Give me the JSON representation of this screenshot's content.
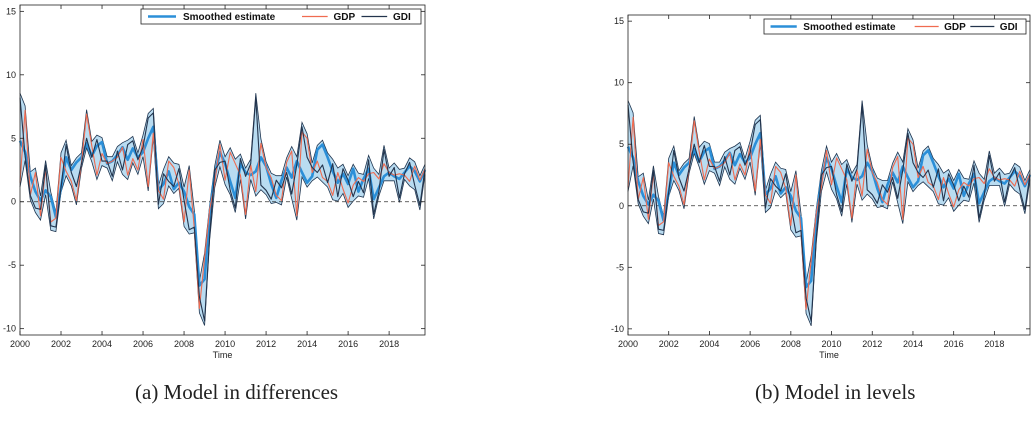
{
  "chart_data": [
    {
      "type": "line",
      "caption": "(a) Model in differences",
      "xlabel": "Time",
      "ylabel": "",
      "xlim": [
        2000,
        2019.75
      ],
      "ylim": [
        -10.5,
        15.5
      ],
      "xticks": [
        "2000",
        "2002",
        "2004",
        "2006",
        "2008",
        "2010",
        "2012",
        "2014",
        "2016",
        "2018"
      ],
      "yticks": [
        "-10",
        "-5",
        "0",
        "5",
        "10",
        "15"
      ],
      "grid": false,
      "legend_position": "top-right",
      "zero_line": true,
      "x_start": 2000,
      "x_step": 0.25,
      "series": [
        {
          "name": "Smoothed estimate",
          "color": "#2b8fd8",
          "values": [
            4.8,
            3.9,
            2.0,
            0.8,
            0.1,
            0.9,
            0.4,
            -1.2,
            1.1,
            3.5,
            2.5,
            3.1,
            3.5,
            4.6,
            3.6,
            4.4,
            4.7,
            3.0,
            3.2,
            3.7,
            4.3,
            3.3,
            4.2,
            3.5,
            3.9,
            5.0,
            5.9,
            0.9,
            1.4,
            2.4,
            1.0,
            1.5,
            0.8,
            -0.4,
            -1.0,
            -6.6,
            -6.1,
            -0.9,
            2.1,
            3.9,
            3.0,
            1.6,
            0.3,
            3.0,
            2.3,
            2.1,
            2.4,
            3.5,
            2.8,
            1.4,
            0.3,
            1.7,
            2.7,
            1.9,
            3.2,
            2.3,
            1.5,
            2.0,
            4.1,
            4.5,
            3.5,
            2.4,
            1.5,
            2.2,
            1.4,
            2.6,
            0.8,
            1.8,
            2.6,
            0.2,
            1.1,
            2.0,
            2.3,
            2.0,
            1.8,
            2.3,
            2.8,
            2.4,
            1.6,
            2.5
          ]
        },
        {
          "name": "GDP",
          "color": "#f06b50",
          "values": [
            1.5,
            7.2,
            0.5,
            2.3,
            -1.1,
            2.6,
            -1.6,
            -1.3,
            3.5,
            2.4,
            1.6,
            0.1,
            3.1,
            6.9,
            4.4,
            2.1,
            3.8,
            3.0,
            3.2,
            3.5,
            4.3,
            2.1,
            3.4,
            2.5,
            4.9,
            1.2,
            5.4,
            0.9,
            0.2,
            3.2,
            2.7,
            1.4,
            -1.6,
            2.5,
            -2.1,
            -8.4,
            -4.4,
            -0.6,
            1.5,
            4.5,
            1.7,
            3.9,
            3.0,
            2.1,
            -1.0,
            2.9,
            0.8,
            4.6,
            2.7,
            1.9,
            0.5,
            0.1,
            3.1,
            4.0,
            -1.1,
            5.5,
            5.0,
            2.3,
            3.2,
            1.9,
            1.6,
            0.5,
            2.3,
            1.0,
            -0.1,
            1.3,
            1.9,
            1.6,
            2.2,
            2.3,
            1.8,
            3.0,
            2.3,
            2.1,
            2.2,
            2.1,
            1.6,
            2.8,
            1.7,
            2.6
          ]
        },
        {
          "name": "GDI",
          "color": "#23344d",
          "values": [
            8.2,
            3.6,
            0.5,
            -0.5,
            -0.6,
            2.9,
            -1.9,
            -2.0,
            1.1,
            4.5,
            2.3,
            1.2,
            3.0,
            5.0,
            3.5,
            4.9,
            3.2,
            3.2,
            2.0,
            4.0,
            2.5,
            4.5,
            4.8,
            3.3,
            4.3,
            6.6,
            7.0,
            -0.2,
            2.2,
            1.6,
            1.2,
            2.6,
            0.1,
            -2.2,
            -2.0,
            -7.5,
            -9.4,
            -2.6,
            2.5,
            3.1,
            3.2,
            0.9,
            -0.5,
            3.4,
            2.0,
            3.0,
            8.2,
            1.3,
            0.9,
            0.2,
            1.7,
            1.1,
            2.3,
            0.6,
            2.9,
            5.9,
            3.5,
            2.7,
            2.3,
            2.9,
            1.5,
            3.0,
            0.4,
            2.6,
            1.7,
            0.4,
            1.6,
            0.7,
            3.3,
            -1.0,
            0.8,
            4.1,
            2.0,
            2.7,
            0.3,
            2.2,
            3.1,
            1.3,
            -0.3,
            2.6
          ]
        }
      ]
    },
    {
      "type": "line",
      "caption": "(b) Model in levels",
      "xlabel": "Time",
      "ylabel": "",
      "xlim": [
        2000,
        2019.75
      ],
      "ylim": [
        -10.5,
        15.5
      ],
      "xticks": [
        "2000",
        "2002",
        "2004",
        "2006",
        "2008",
        "2010",
        "2012",
        "2014",
        "2016",
        "2018"
      ],
      "yticks": [
        "-10",
        "-5",
        "0",
        "5",
        "10",
        "15"
      ],
      "grid": false,
      "legend_position": "top-right",
      "zero_line": true,
      "x_start": 2000,
      "x_step": 0.25,
      "series": [
        {
          "name": "Smoothed estimate",
          "color": "#2b8fd8",
          "values": [
            4.8,
            3.9,
            2.0,
            0.8,
            0.1,
            0.9,
            0.4,
            -1.2,
            1.1,
            3.5,
            2.5,
            3.1,
            3.5,
            4.6,
            3.6,
            4.4,
            4.7,
            3.0,
            3.2,
            3.7,
            4.3,
            3.3,
            4.2,
            3.5,
            3.9,
            5.0,
            5.9,
            0.9,
            1.4,
            2.4,
            1.0,
            1.5,
            0.8,
            -0.4,
            -1.0,
            -6.6,
            -6.1,
            -0.9,
            2.1,
            3.9,
            3.0,
            1.6,
            0.3,
            3.0,
            2.3,
            2.1,
            2.4,
            3.5,
            2.8,
            1.4,
            0.3,
            1.7,
            2.7,
            1.9,
            3.2,
            2.3,
            1.5,
            2.0,
            4.1,
            4.5,
            3.5,
            2.4,
            1.5,
            2.2,
            1.4,
            2.6,
            0.8,
            1.8,
            2.6,
            0.2,
            1.1,
            2.0,
            2.3,
            2.0,
            1.8,
            2.3,
            2.8,
            2.4,
            1.6,
            2.5
          ]
        },
        {
          "name": "GDP",
          "color": "#f06b50",
          "values": [
            1.5,
            7.2,
            0.5,
            2.3,
            -1.1,
            2.6,
            -1.6,
            -1.3,
            3.5,
            2.4,
            1.6,
            0.1,
            3.1,
            6.9,
            4.4,
            2.1,
            3.8,
            3.0,
            3.2,
            3.5,
            4.3,
            2.1,
            3.4,
            2.5,
            4.9,
            1.2,
            5.4,
            0.9,
            0.2,
            3.2,
            2.7,
            1.4,
            -1.6,
            2.5,
            -2.1,
            -8.4,
            -4.4,
            -0.6,
            1.5,
            4.5,
            1.7,
            3.9,
            3.0,
            2.1,
            -1.0,
            2.9,
            0.8,
            4.6,
            2.7,
            1.9,
            0.5,
            0.1,
            3.1,
            4.0,
            -1.1,
            5.5,
            5.0,
            2.3,
            3.2,
            1.9,
            1.6,
            0.5,
            2.3,
            1.0,
            -0.1,
            1.3,
            1.9,
            1.6,
            2.2,
            2.3,
            1.8,
            3.0,
            2.3,
            2.1,
            2.2,
            2.1,
            1.6,
            2.8,
            1.7,
            2.6
          ]
        },
        {
          "name": "GDI",
          "color": "#23344d",
          "values": [
            8.2,
            3.6,
            0.5,
            -0.5,
            -0.6,
            2.9,
            -1.9,
            -2.0,
            1.1,
            4.5,
            2.3,
            1.2,
            3.0,
            5.0,
            3.5,
            4.9,
            3.2,
            3.2,
            2.0,
            4.0,
            2.5,
            4.5,
            4.8,
            3.3,
            4.3,
            6.6,
            7.0,
            -0.2,
            2.2,
            1.6,
            1.2,
            2.6,
            0.1,
            -2.2,
            -2.0,
            -7.5,
            -9.4,
            -2.6,
            2.5,
            3.1,
            3.2,
            0.9,
            -0.5,
            3.4,
            2.0,
            3.0,
            8.2,
            1.3,
            0.9,
            0.2,
            1.7,
            1.1,
            2.3,
            0.6,
            2.9,
            5.9,
            3.5,
            2.7,
            2.3,
            2.9,
            1.5,
            3.0,
            0.4,
            2.6,
            1.7,
            0.4,
            1.6,
            0.7,
            3.3,
            -1.0,
            0.8,
            4.1,
            2.0,
            2.7,
            0.3,
            2.2,
            3.1,
            1.3,
            -0.3,
            2.6
          ]
        }
      ]
    }
  ]
}
